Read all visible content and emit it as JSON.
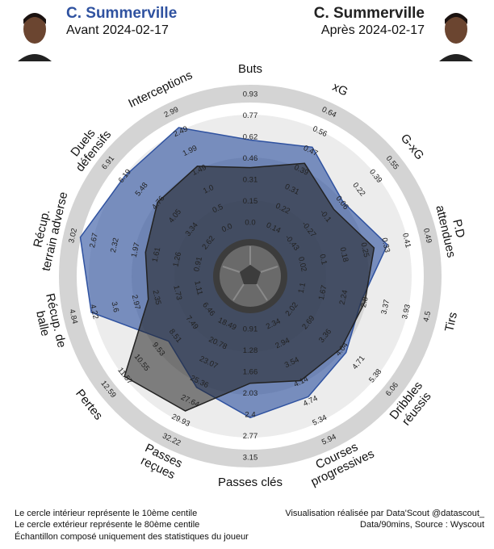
{
  "header": {
    "player": "C. Summerville"
  },
  "chart_data": {
    "type": "radar",
    "categories": [
      "Buts",
      "xG",
      "G-xG",
      "P.D\nattendues",
      "Tirs",
      "Dribbles\nréussis",
      "Courses\nprogressives",
      "Passes clés",
      "Passes\nreçues",
      "Pertes",
      "Récup. de\nballe",
      "Récup.\nterrain adverse",
      "Duels\ndéfensifs",
      "Interceptions"
    ],
    "ticks": [
      [
        {
          "value": 0,
          "label": "0.0"
        },
        0.15,
        0.31,
        0.46,
        0.62,
        0.77,
        0.93
      ],
      [
        0.14,
        0.22,
        0.31,
        0.39,
        0.47,
        0.56,
        0.64
      ],
      [
        -0.43,
        -0.27,
        -0.1,
        0.06,
        0.22,
        0.39,
        0.55
      ],
      [
        0.02,
        0.1,
        0.18,
        0.25,
        0.33,
        0.41,
        0.49
      ],
      [
        1.1,
        1.67,
        2.24,
        2.8,
        3.37,
        3.93,
        4.5
      ],
      [
        2.02,
        2.69,
        3.36,
        4.04,
        4.71,
        5.38,
        6.06
      ],
      [
        2.34,
        2.94,
        3.54,
        4.14,
        4.74,
        5.34,
        5.94
      ],
      [
        0.91,
        1.28,
        1.66,
        2.03,
        2.4,
        2.77,
        3.15
      ],
      [
        18.49,
        20.78,
        23.07,
        25.36,
        27.64,
        29.93,
        32.22
      ],
      [
        6.46,
        7.49,
        8.51,
        9.53,
        10.55,
        11.57,
        12.59
      ],
      [
        1.11,
        1.73,
        2.35,
        2.97,
        3.6,
        4.22,
        4.84
      ],
      [
        0.91,
        1.26,
        1.61,
        1.97,
        2.32,
        2.67,
        3.02
      ],
      [
        2.62,
        3.34,
        4.05,
        4.76,
        5.48,
        6.19,
        6.91
      ],
      [
        {
          "value": 0,
          "label": "0.0"
        },
        0.5,
        {
          "value": 1,
          "label": "1.0"
        },
        1.49,
        1.99,
        2.49,
        2.99
      ]
    ],
    "series": [
      {
        "name": "Avant 2024-02-17",
        "color": "#2f52a0",
        "values": [
          0.6,
          0.49,
          0.07,
          0.34,
          2.7,
          4.2,
          4.6,
          2.45,
          26.0,
          8.9,
          4.3,
          2.9,
          6.2,
          2.6
        ]
      },
      {
        "name": "Après 2024-02-17",
        "color": "#222222",
        "values": [
          0.4,
          0.42,
          -0.02,
          0.29,
          2.8,
          4.0,
          4.1,
          1.85,
          28.8,
          11.6,
          2.6,
          1.8,
          4.8,
          1.6
        ]
      }
    ]
  },
  "footer": {
    "left": [
      "Le cercle intérieur représente le 10ème centile",
      "Le cercle extérieur représente le 80ème centile",
      "Échantillon composé uniquement des statistiques du joueur"
    ],
    "right": [
      "Visualisation réalisée par Data'Scout @datascout_",
      "Data/90mins, Source : Wyscout"
    ]
  }
}
